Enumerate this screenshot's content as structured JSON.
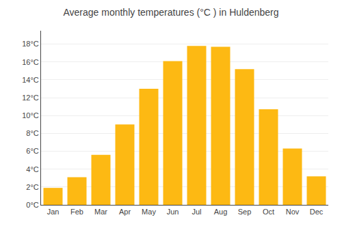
{
  "chart_data": {
    "type": "bar",
    "title": "Average monthly temperatures (°C ) in Huldenberg",
    "categories": [
      "Jan",
      "Feb",
      "Mar",
      "Apr",
      "May",
      "Jun",
      "Jul",
      "Aug",
      "Sep",
      "Oct",
      "Nov",
      "Dec"
    ],
    "values": [
      1.9,
      3.1,
      5.6,
      9.0,
      13.0,
      16.1,
      17.8,
      17.7,
      15.2,
      10.7,
      6.3,
      3.2
    ],
    "color": "#FDB913",
    "ylim": [
      0,
      19.5
    ],
    "yticks": [
      {
        "value": 0,
        "label": "0°C"
      },
      {
        "value": 2,
        "label": "2°C"
      },
      {
        "value": 4,
        "label": "4°C"
      },
      {
        "value": 6,
        "label": "6°C"
      },
      {
        "value": 8,
        "label": "8°C"
      },
      {
        "value": 10,
        "label": "10°C"
      },
      {
        "value": 12,
        "label": "12°C"
      },
      {
        "value": 14,
        "label": "14°C"
      },
      {
        "value": 16,
        "label": "16°C"
      },
      {
        "value": 18,
        "label": "18°C"
      }
    ],
    "grid": true
  }
}
